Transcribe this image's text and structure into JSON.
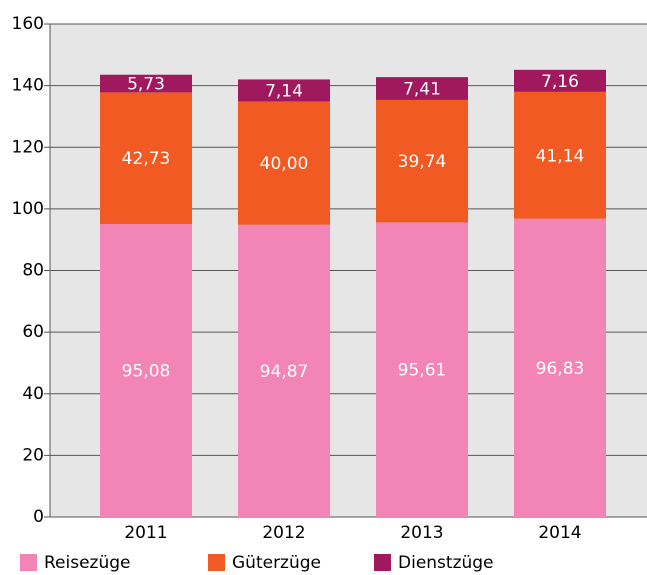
{
  "chart_data": {
    "type": "bar",
    "stacked": true,
    "categories": [
      "2011",
      "2012",
      "2013",
      "2014"
    ],
    "series": [
      {
        "name": "Reisezüge",
        "color": "#f285b5",
        "values": [
          95.08,
          94.87,
          95.61,
          96.83
        ],
        "value_labels": [
          "95,08",
          "94,87",
          "95,61",
          "96,83"
        ]
      },
      {
        "name": "Güterzüge",
        "color": "#f15a22",
        "values": [
          42.73,
          40.0,
          39.74,
          41.14
        ],
        "value_labels": [
          "42,73",
          "40,00",
          "39,74",
          "41,14"
        ]
      },
      {
        "name": "Dienstzüge",
        "color": "#a0195e",
        "values": [
          5.73,
          7.14,
          7.41,
          7.16
        ],
        "value_labels": [
          "5,73",
          "7,14",
          "7,41",
          "7,16"
        ]
      }
    ],
    "ylim": [
      0,
      160
    ],
    "yticks": [
      0,
      20,
      40,
      60,
      80,
      100,
      120,
      140,
      160
    ],
    "grid": true
  }
}
